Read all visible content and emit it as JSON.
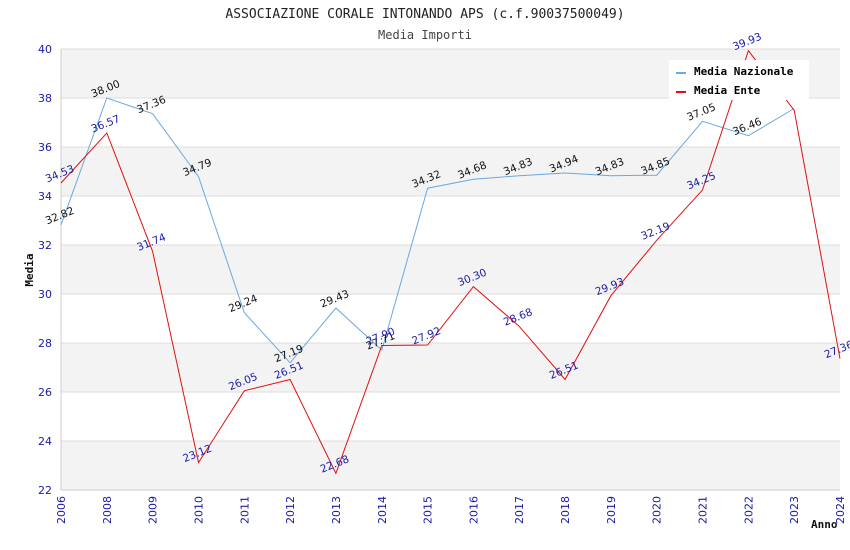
{
  "chart_data": {
    "type": "line",
    "title": "ASSOCIAZIONE CORALE INTONANDO APS (c.f.90037500049)",
    "subtitle": "Media Importi",
    "xlabel": "Anno",
    "ylabel": "Media",
    "ylim": [
      22,
      40
    ],
    "yticks": [
      "22",
      "24",
      "26",
      "28",
      "30",
      "32",
      "34",
      "36",
      "38",
      "40"
    ],
    "categories": [
      "2006",
      "2008",
      "2009",
      "2010",
      "2011",
      "2012",
      "2013",
      "2014",
      "2015",
      "2016",
      "2017",
      "2018",
      "2019",
      "2020",
      "2021",
      "2022",
      "2023",
      "2024"
    ],
    "grid": true,
    "legend_position": "top-right",
    "series": [
      {
        "name": "Media Nazionale",
        "color": "#6aa8e0",
        "values": [
          32.82,
          38.0,
          37.36,
          34.79,
          29.24,
          27.19,
          29.43,
          27.71,
          34.32,
          34.68,
          34.83,
          34.94,
          34.83,
          34.85,
          37.05,
          36.46,
          37.57,
          null
        ],
        "labels": [
          "32.82",
          "38.00",
          "37.36",
          "34.79",
          "29.24",
          "27.19",
          "29.43",
          "27.71",
          "34.32",
          "34.68",
          "34.83",
          "34.94",
          "34.83",
          "34.85",
          "37.05",
          "36.46",
          "",
          ""
        ]
      },
      {
        "name": "Media Ente",
        "color": "#e01010",
        "values": [
          34.53,
          36.57,
          31.74,
          23.12,
          26.05,
          26.51,
          22.68,
          27.9,
          27.92,
          30.3,
          28.68,
          26.51,
          29.93,
          32.19,
          34.25,
          39.93,
          37.5,
          27.36
        ],
        "labels": [
          "34.53",
          "36.57",
          "31.74",
          "23.12",
          "26.05",
          "26.51",
          "22.68",
          "27.90",
          "27.92",
          "30.30",
          "28.68",
          "26.51",
          "29.93",
          "32.19",
          "34.25",
          "39.93",
          "",
          "27.36"
        ]
      }
    ]
  }
}
